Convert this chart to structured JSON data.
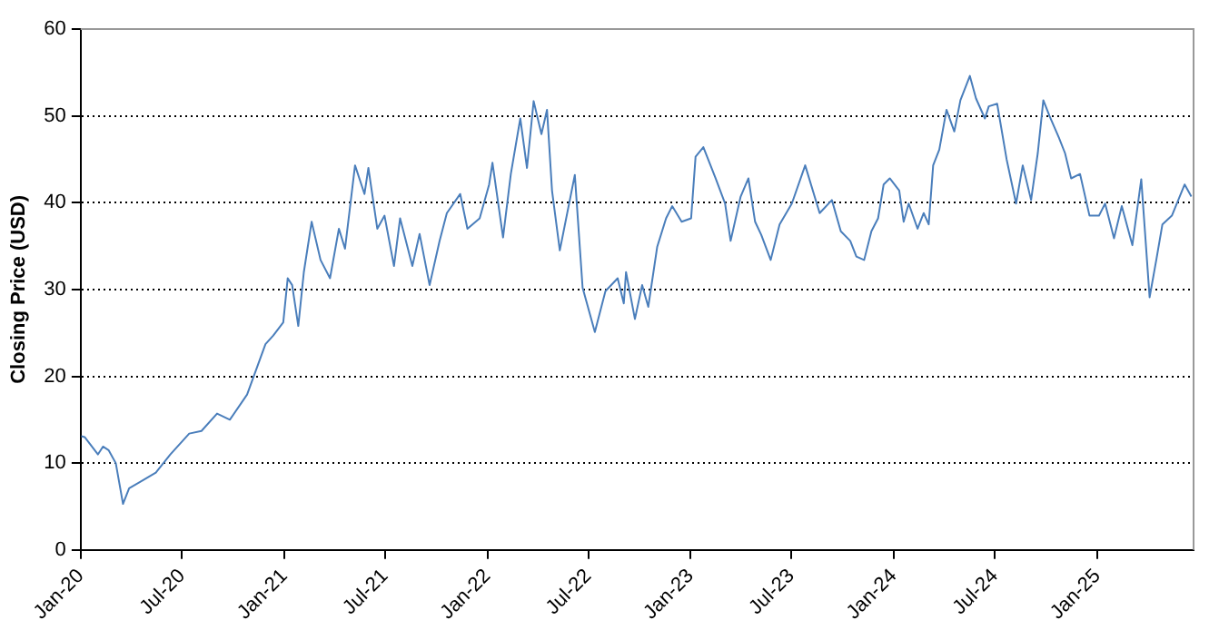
{
  "chart_data": {
    "type": "line",
    "ylabel": "Closing Price (USD)",
    "xlim": [
      "2020-01-01",
      "2025-06-23"
    ],
    "xticks": [
      {
        "value": "2020-01-01",
        "label": "Jan-20"
      },
      {
        "value": "2020-07-01",
        "label": "Jul-20"
      },
      {
        "value": "2021-01-01",
        "label": "Jan-21"
      },
      {
        "value": "2021-07-01",
        "label": "Jul-21"
      },
      {
        "value": "2022-01-01",
        "label": "Jan-22"
      },
      {
        "value": "2022-07-01",
        "label": "Jul-22"
      },
      {
        "value": "2023-01-01",
        "label": "Jan-23"
      },
      {
        "value": "2023-07-01",
        "label": "Jul-23"
      },
      {
        "value": "2024-01-01",
        "label": "Jan-24"
      },
      {
        "value": "2024-07-01",
        "label": "Jul-24"
      },
      {
        "value": "2025-01-01",
        "label": "Jan-25"
      }
    ],
    "ylim": [
      0,
      60
    ],
    "yticks": [
      0,
      10,
      20,
      30,
      40,
      50,
      60
    ],
    "grid": "y",
    "legend": false,
    "marker": "none",
    "line_style": "solid",
    "series": [
      {
        "color": "#4a7ebb",
        "x": [
          "2020-01-02",
          "2020-01-08",
          "2020-02-01",
          "2020-02-10",
          "2020-02-20",
          "2020-03-04",
          "2020-03-17",
          "2020-03-28",
          "2020-04-16",
          "2020-05-15",
          "2020-06-10",
          "2020-07-14",
          "2020-08-05",
          "2020-09-02",
          "2020-09-25",
          "2020-10-26",
          "2020-11-28",
          "2020-12-12",
          "2020-12-30",
          "2021-01-07",
          "2021-01-15",
          "2021-01-26",
          "2021-02-05",
          "2021-02-19",
          "2021-03-07",
          "2021-03-24",
          "2021-04-09",
          "2021-04-20",
          "2021-05-08",
          "2021-05-25",
          "2021-06-01",
          "2021-06-17",
          "2021-06-30",
          "2021-07-17",
          "2021-07-28",
          "2021-08-19",
          "2021-09-01",
          "2021-09-19",
          "2021-10-07",
          "2021-10-20",
          "2021-11-13",
          "2021-11-26",
          "2021-12-18",
          "2022-01-04",
          "2022-01-10",
          "2022-01-29",
          "2022-02-12",
          "2022-03-01",
          "2022-03-13",
          "2022-03-25",
          "2022-04-08",
          "2022-04-18",
          "2022-04-27",
          "2022-05-11",
          "2022-06-07",
          "2022-06-21",
          "2022-07-13",
          "2022-08-01",
          "2022-08-23",
          "2022-09-03",
          "2022-09-07",
          "2022-09-23",
          "2022-10-06",
          "2022-10-17",
          "2022-11-02",
          "2022-11-18",
          "2022-11-29",
          "2022-12-16",
          "2023-01-02",
          "2023-01-10",
          "2023-01-24",
          "2023-02-15",
          "2023-03-04",
          "2023-03-14",
          "2023-04-01",
          "2023-04-15",
          "2023-04-27",
          "2023-05-08",
          "2023-05-25",
          "2023-06-10",
          "2023-07-02",
          "2023-07-26",
          "2023-08-21",
          "2023-09-12",
          "2023-09-28",
          "2023-10-15",
          "2023-10-26",
          "2023-11-09",
          "2023-11-22",
          "2023-12-04",
          "2023-12-14",
          "2023-12-25",
          "2024-01-11",
          "2024-01-19",
          "2024-01-28",
          "2024-02-13",
          "2024-02-24",
          "2024-03-04",
          "2024-03-12",
          "2024-03-23",
          "2024-04-05",
          "2024-04-19",
          "2024-04-30",
          "2024-05-17",
          "2024-05-28",
          "2024-06-13",
          "2024-06-20",
          "2024-07-05",
          "2024-07-22",
          "2024-08-08",
          "2024-08-20",
          "2024-09-04",
          "2024-09-16",
          "2024-09-26",
          "2024-10-07",
          "2024-10-24",
          "2024-11-04",
          "2024-11-15",
          "2024-12-01",
          "2024-12-18",
          "2025-01-04",
          "2025-01-15",
          "2025-01-31",
          "2025-02-14",
          "2025-03-05",
          "2025-03-21",
          "2025-04-05",
          "2025-04-17",
          "2025-04-28",
          "2025-05-15",
          "2025-06-07",
          "2025-06-19"
        ],
        "values": [
          13.1,
          13.0,
          11.0,
          11.9,
          11.5,
          10.0,
          5.3,
          7.1,
          7.8,
          8.9,
          11.0,
          13.4,
          13.7,
          15.7,
          15.0,
          17.9,
          23.7,
          24.7,
          26.2,
          31.3,
          30.5,
          25.8,
          32.0,
          37.8,
          33.4,
          31.3,
          37.0,
          34.7,
          44.3,
          41.0,
          44.0,
          37.0,
          38.5,
          32.7,
          38.2,
          32.7,
          36.4,
          30.5,
          35.6,
          38.8,
          41.0,
          37.0,
          38.2,
          42.1,
          44.6,
          36.0,
          43.3,
          49.7,
          44.0,
          51.7,
          47.9,
          50.7,
          41.4,
          34.5,
          43.2,
          30.2,
          25.1,
          29.8,
          31.3,
          28.4,
          32.0,
          26.6,
          30.5,
          28.0,
          34.9,
          38.2,
          39.6,
          37.8,
          38.2,
          45.3,
          46.4,
          42.8,
          39.9,
          35.6,
          40.7,
          42.8,
          37.8,
          36.3,
          33.4,
          37.5,
          39.9,
          44.3,
          38.8,
          40.3,
          36.7,
          35.6,
          33.8,
          33.4,
          36.7,
          38.2,
          42.1,
          42.8,
          41.4,
          37.8,
          39.9,
          37.0,
          38.8,
          37.5,
          44.3,
          46.1,
          50.7,
          48.2,
          51.8,
          54.6,
          52.0,
          49.7,
          51.1,
          51.4,
          45.0,
          39.9,
          44.3,
          40.3,
          45.7,
          51.8,
          50.0,
          47.5,
          45.7,
          42.8,
          43.3,
          38.5,
          38.5,
          39.9,
          35.9,
          39.6,
          35.1,
          42.7,
          29.1,
          33.4,
          37.5,
          38.5,
          42.1,
          40.7
        ]
      }
    ]
  }
}
